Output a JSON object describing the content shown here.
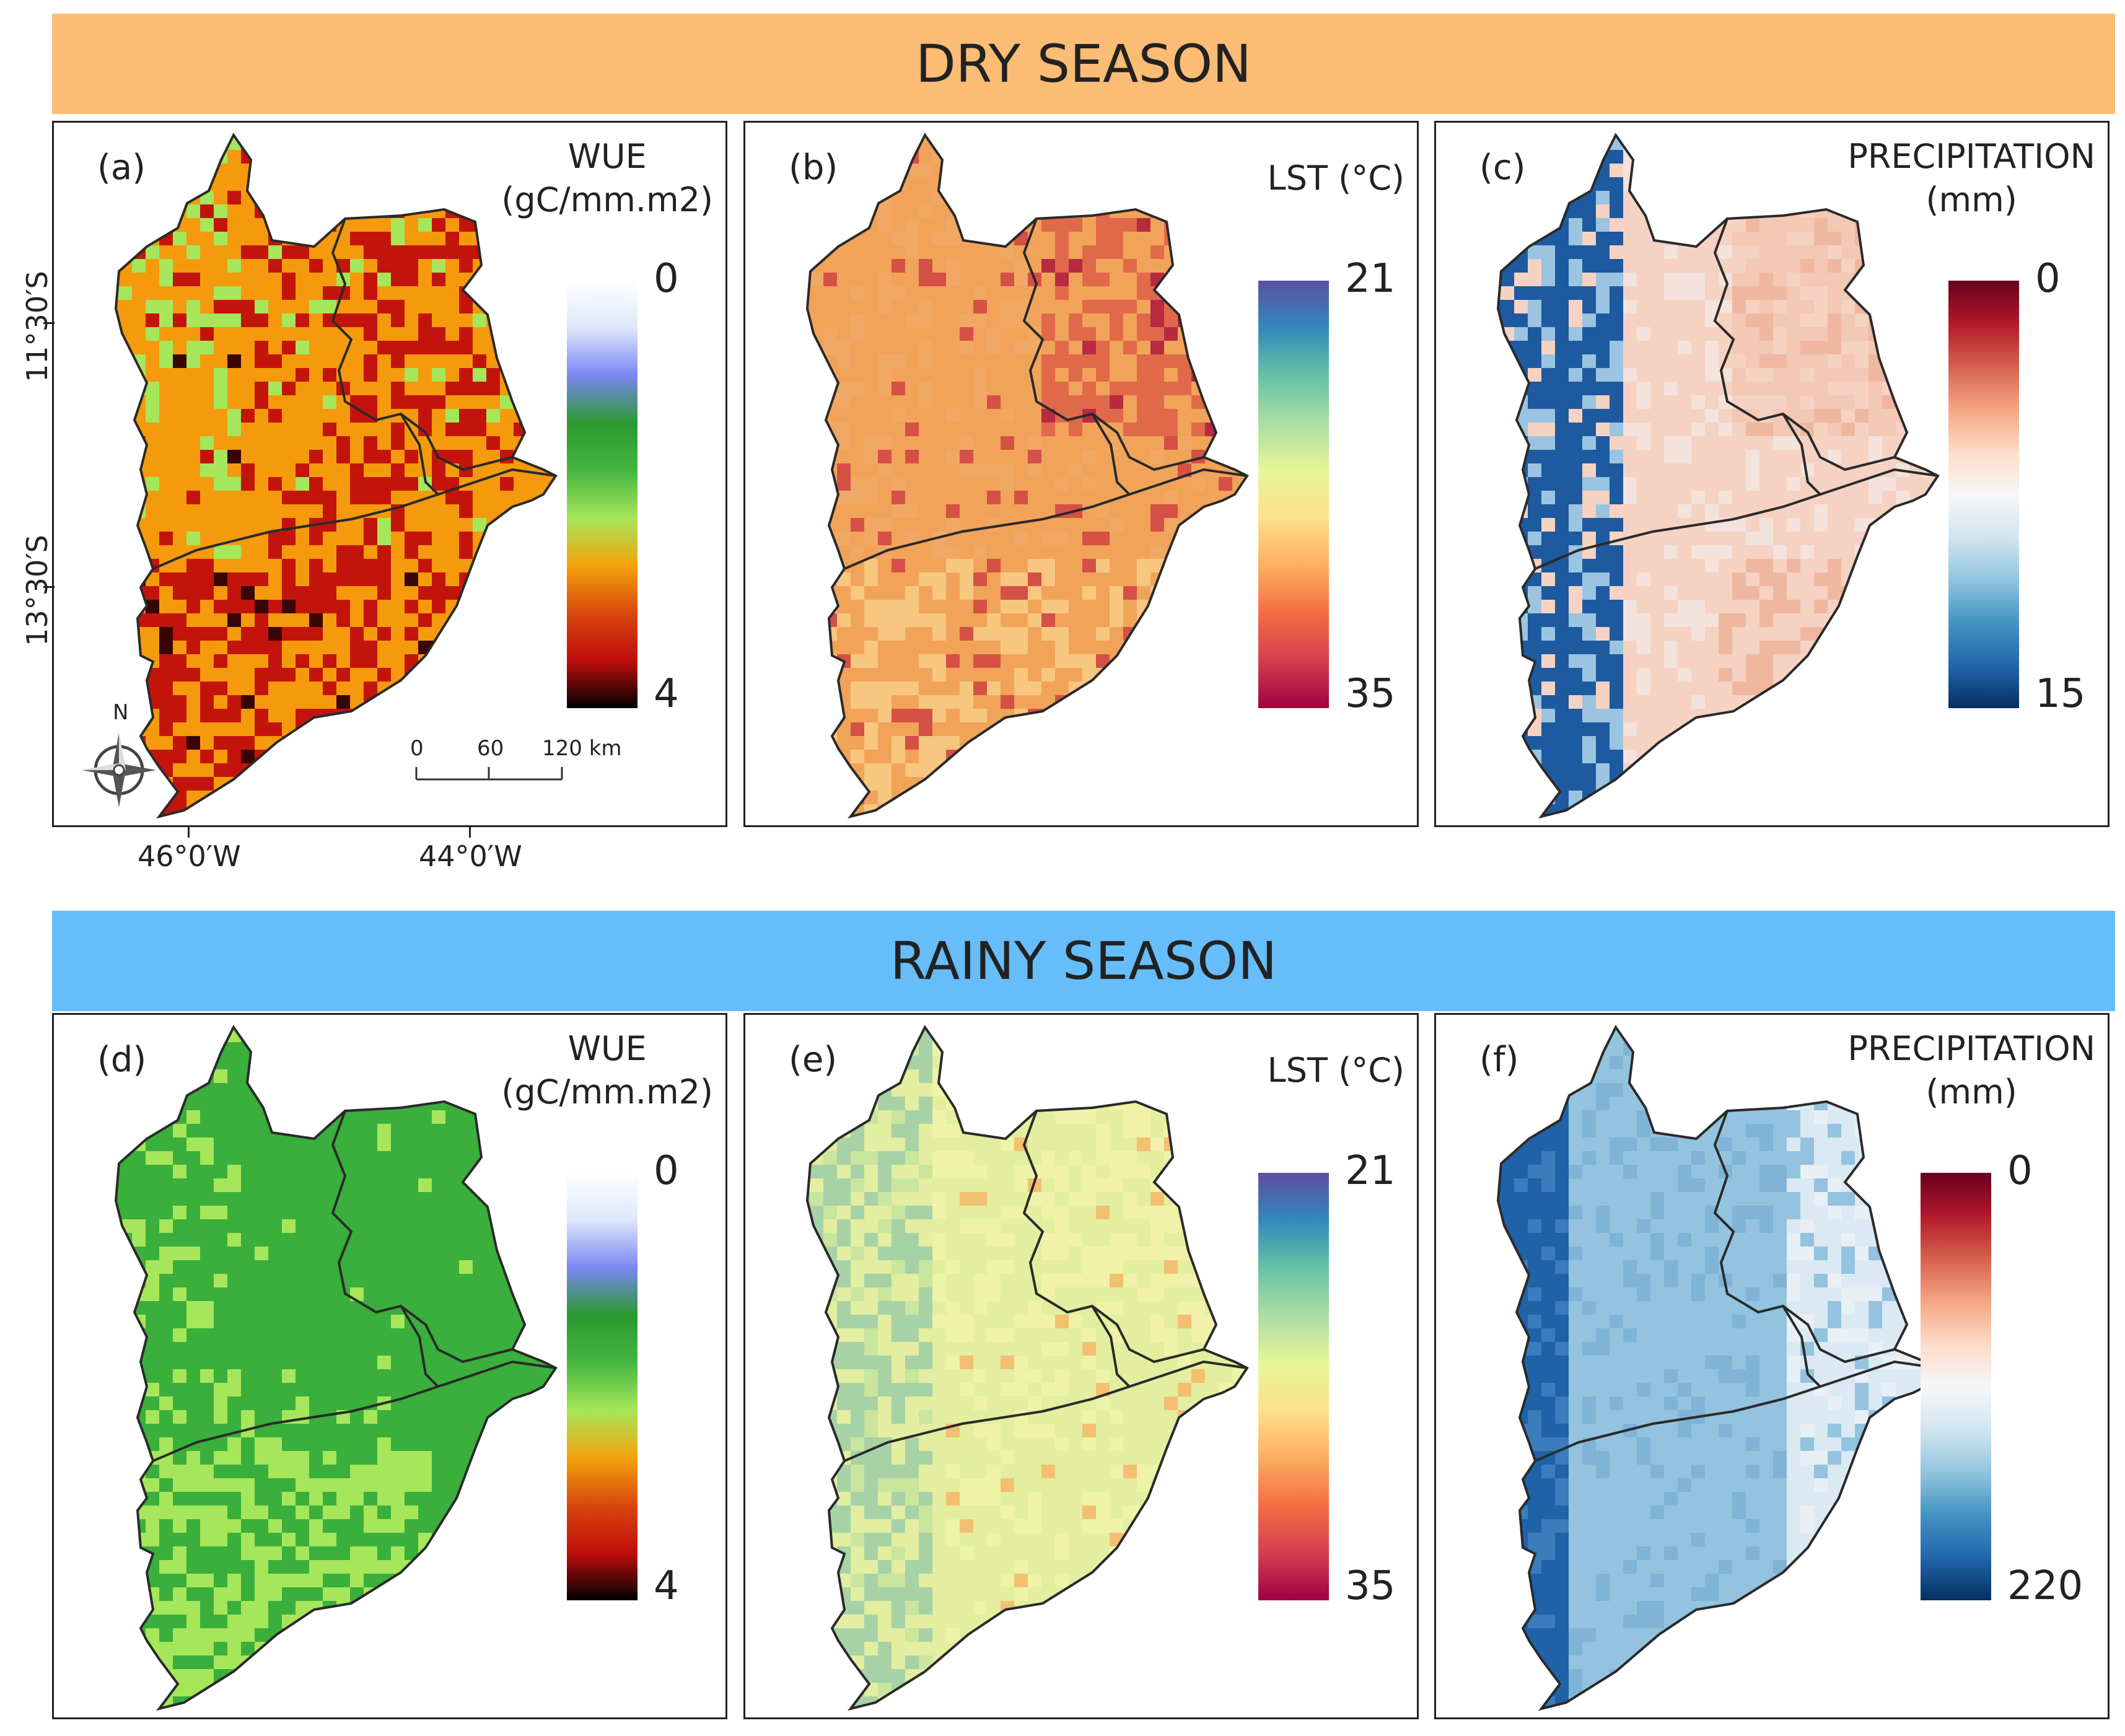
{
  "banners": {
    "dry": "DRY SEASON",
    "rainy": "RAINY SEASON"
  },
  "panels": [
    {
      "id": "a",
      "label": "(a)",
      "variable": "wue",
      "title_line1": "WUE",
      "title_line2": "(gC/mm.m2)",
      "scale_top": "0",
      "scale_bottom": "4",
      "season": "dry",
      "fill": "#f59a0c",
      "patch": "#c3140c",
      "dark": "#3a0505",
      "region_palette": [
        "#f59a0c",
        "#f0900a",
        "#d63a10",
        "#c9a417"
      ]
    },
    {
      "id": "b",
      "label": "(b)",
      "variable": "lst",
      "title_line1": "LST (°C)",
      "title_line2": "",
      "scale_top": "21",
      "scale_bottom": "35",
      "season": "dry",
      "fill": "#f2a35a",
      "patch": "#d55045",
      "dark": "#b82a40",
      "region_palette": [
        "#f4ae62",
        "#e0694a",
        "#f1a865",
        "#f7c77f"
      ]
    },
    {
      "id": "c",
      "label": "(c)",
      "variable": "precip",
      "title_line1": "PRECIPITATION",
      "title_line2": "(mm)",
      "scale_top": "0",
      "scale_bottom": "15",
      "season": "dry",
      "fill": "#f6d2c2",
      "patch": "#e9a48c",
      "dark": "#1d5aa0",
      "region_palette": [
        "#9ac4e0",
        "#f3c8b4",
        "#f0b7a0",
        "#f4e2dc"
      ]
    },
    {
      "id": "d",
      "label": "(d)",
      "variable": "wue",
      "title_line1": "WUE",
      "title_line2": "(gC/mm.m2)",
      "scale_top": "0",
      "scale_bottom": "4",
      "season": "rainy",
      "fill": "#3aaf3c",
      "patch": "#a6e65a",
      "dark": "#2a9a30",
      "region_palette": [
        "#42b23e",
        "#36a836",
        "#8fd856",
        "#3aaf3c"
      ]
    },
    {
      "id": "e",
      "label": "(e)",
      "variable": "lst",
      "title_line1": "LST (°C)",
      "title_line2": "",
      "scale_top": "21",
      "scale_bottom": "35",
      "season": "rainy",
      "fill": "#e3eea0",
      "patch": "#a7d2a6",
      "dark": "#f2c070",
      "region_palette": [
        "#c9e59e",
        "#f1f1aa",
        "#d8eaa0",
        "#eef3a8"
      ]
    },
    {
      "id": "f",
      "label": "(f)",
      "variable": "precip",
      "title_line1": "PRECIPITATION",
      "title_line2": "(mm)",
      "scale_top": "0",
      "scale_bottom": "220",
      "season": "rainy",
      "fill": "#93c3de",
      "patch": "#dbe9f3",
      "dark": "#1f62a8",
      "region_palette": [
        "#93c3de",
        "#d3e5f1",
        "#e8eff5",
        "#9ec9e2"
      ]
    }
  ],
  "axes": {
    "lat_top": "11°30′S",
    "lat_bottom": "13°30′S",
    "lon_left": "46°0′W",
    "lon_right": "44°0′W"
  },
  "scalebar": {
    "t0": "0",
    "t1": "60",
    "t2": "120 km"
  },
  "north_label": "N",
  "colors": {
    "wue_ramp": [
      "#ffffff",
      "#dde7fb",
      "#7a86f2",
      "#2a9a30",
      "#45b640",
      "#a6e65a",
      "#f5a20c",
      "#d8480c",
      "#c00c0c",
      "#000000"
    ],
    "lst_ramp": [
      "#5d4ea2",
      "#3288bd",
      "#66c2a5",
      "#abdda4",
      "#e6f598",
      "#fee08b",
      "#fdae61",
      "#f46d43",
      "#d53e4f",
      "#9e0142"
    ],
    "precip_ramp": [
      "#67001f",
      "#b2182b",
      "#d6604d",
      "#f4a582",
      "#fddbc7",
      "#f7f7f7",
      "#d1e5f0",
      "#92c5de",
      "#4393c3",
      "#2166ac",
      "#053061"
    ]
  }
}
